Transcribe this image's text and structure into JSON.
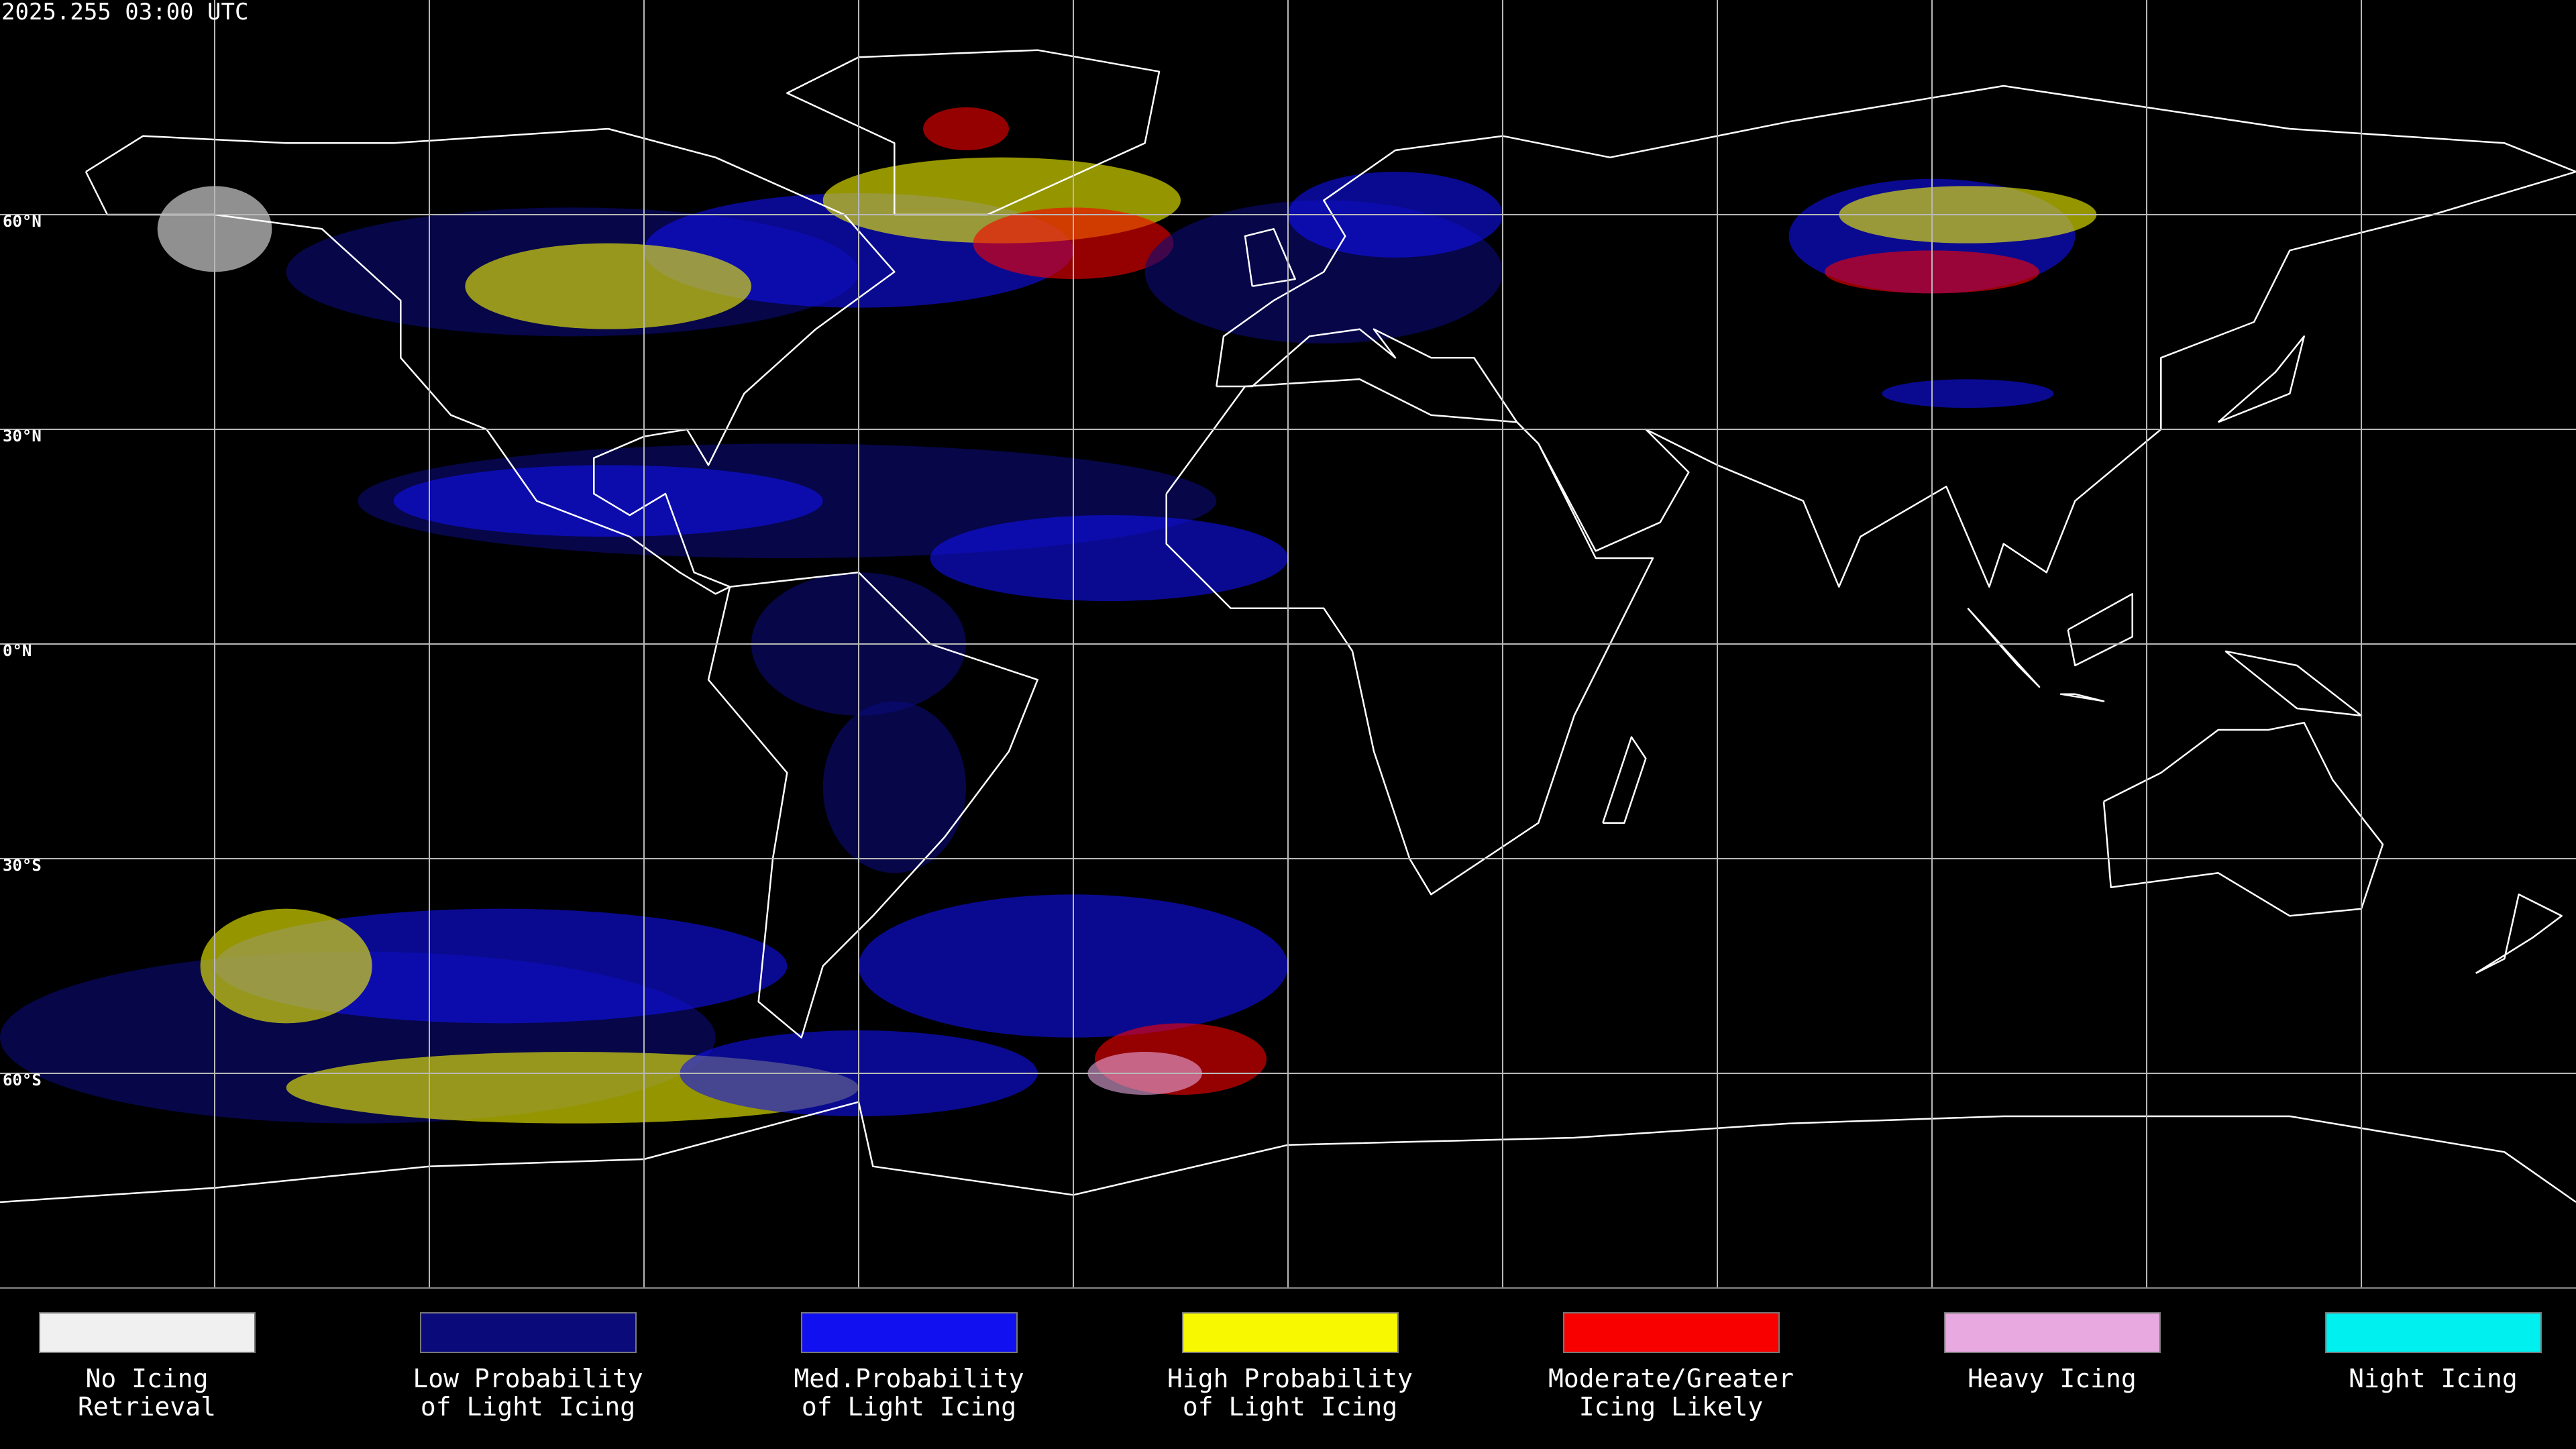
{
  "timestamp": "2025.255 03:00 UTC",
  "latitude_labels": [
    "60°N",
    "30°N",
    "0°N",
    "30°S",
    "60°S"
  ],
  "legend": [
    {
      "lines": [
        "No Icing",
        "Retrieval"
      ],
      "color": "#f0f0f0"
    },
    {
      "lines": [
        "Low Probability",
        "of Light Icing"
      ],
      "color": "#0a0a7a"
    },
    {
      "lines": [
        "Med.Probability",
        "of Light Icing"
      ],
      "color": "#1010f0"
    },
    {
      "lines": [
        "High Probability",
        "of Light Icing"
      ],
      "color": "#f8f800"
    },
    {
      "lines": [
        "Moderate/Greater",
        "Icing Likely"
      ],
      "color": "#f80000"
    },
    {
      "lines": [
        "Heavy Icing"
      ],
      "color": "#e8a8e0"
    },
    {
      "lines": [
        "Night Icing"
      ],
      "color": "#00f0f0"
    }
  ]
}
